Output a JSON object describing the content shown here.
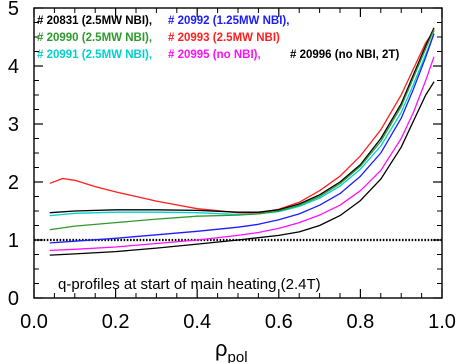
{
  "chart_data": {
    "type": "line",
    "title": "",
    "xlabel": "ρ",
    "xlabel_sub": "pol",
    "ylabel": "",
    "xlim": [
      0.0,
      1.0
    ],
    "ylim": [
      0,
      5
    ],
    "xticks": [
      "0.0",
      "0.2",
      "0.4",
      "0.6",
      "0.8",
      "1.0"
    ],
    "yticks": [
      "0",
      "1",
      "2",
      "3",
      "4",
      "5"
    ],
    "annotation": "q-profiles at start of main heating (2.4T)",
    "reference_line": {
      "y": 1.0,
      "style": "dotted",
      "color": "#000000"
    },
    "legend_rows": [
      [
        {
          "text": "# 20831 (2.5MW NBI),",
          "color": "#000000"
        },
        {
          "text": "# 20992 (1.25MW NBI),",
          "color": "#1c1cff"
        }
      ],
      [
        {
          "text": "# 20990 (2.5MW NBI),",
          "color": "#2e9a2e"
        },
        {
          "text": "# 20993 (2.5MW NBI)",
          "color": "#ff2020"
        }
      ],
      [
        {
          "text": "# 20991 (2.5MW NBI),",
          "color": "#00d0d0"
        },
        {
          "text": "# 20995 (no NBI),",
          "color": "#ff10ff"
        },
        {
          "text": "# 20996 (no NBI, 2T)",
          "color": "#000000"
        }
      ]
    ],
    "series": [
      {
        "color": "#ff2020",
        "x": [
          0.04,
          0.07,
          0.1,
          0.15,
          0.2,
          0.3,
          0.4,
          0.5,
          0.55,
          0.6,
          0.65,
          0.7,
          0.75,
          0.8,
          0.85,
          0.9,
          0.93,
          0.96,
          0.98
        ],
        "y": [
          1.98,
          2.06,
          2.03,
          1.92,
          1.83,
          1.67,
          1.54,
          1.47,
          1.47,
          1.53,
          1.65,
          1.85,
          2.1,
          2.45,
          2.9,
          3.5,
          3.95,
          4.4,
          4.6
        ]
      },
      {
        "color": "#000000",
        "x": [
          0.04,
          0.1,
          0.2,
          0.3,
          0.4,
          0.5,
          0.55,
          0.6,
          0.65,
          0.7,
          0.75,
          0.8,
          0.85,
          0.9,
          0.93,
          0.96,
          0.98
        ],
        "y": [
          1.47,
          1.5,
          1.52,
          1.52,
          1.51,
          1.48,
          1.48,
          1.52,
          1.62,
          1.78,
          2.0,
          2.3,
          2.75,
          3.35,
          3.85,
          4.35,
          4.65
        ]
      },
      {
        "color": "#00d0d0",
        "x": [
          0.04,
          0.1,
          0.2,
          0.3,
          0.4,
          0.5,
          0.55,
          0.6,
          0.65,
          0.7,
          0.75,
          0.8,
          0.85,
          0.9,
          0.93,
          0.96,
          0.98
        ],
        "y": [
          1.42,
          1.46,
          1.48,
          1.48,
          1.47,
          1.44,
          1.45,
          1.49,
          1.58,
          1.72,
          1.93,
          2.22,
          2.62,
          3.2,
          3.68,
          4.2,
          4.55
        ]
      },
      {
        "color": "#2e9a2e",
        "x": [
          0.04,
          0.1,
          0.2,
          0.3,
          0.4,
          0.5,
          0.55,
          0.6,
          0.65,
          0.7,
          0.75,
          0.8,
          0.85,
          0.9,
          0.93,
          0.96,
          0.98
        ],
        "y": [
          1.18,
          1.24,
          1.3,
          1.36,
          1.41,
          1.43,
          1.45,
          1.5,
          1.6,
          1.75,
          1.97,
          2.27,
          2.7,
          3.3,
          3.8,
          4.3,
          4.62
        ]
      },
      {
        "color": "#1c1cff",
        "x": [
          0.04,
          0.1,
          0.2,
          0.3,
          0.4,
          0.5,
          0.55,
          0.6,
          0.65,
          0.7,
          0.75,
          0.8,
          0.85,
          0.9,
          0.93,
          0.96,
          0.98
        ],
        "y": [
          0.95,
          0.98,
          1.03,
          1.09,
          1.15,
          1.22,
          1.27,
          1.35,
          1.45,
          1.6,
          1.8,
          2.1,
          2.5,
          3.1,
          3.6,
          4.15,
          4.55
        ]
      },
      {
        "color": "#ff10ff",
        "x": [
          0.04,
          0.1,
          0.2,
          0.3,
          0.4,
          0.5,
          0.55,
          0.6,
          0.65,
          0.7,
          0.75,
          0.8,
          0.85,
          0.9,
          0.93,
          0.96,
          0.98
        ],
        "y": [
          0.82,
          0.84,
          0.88,
          0.94,
          1.0,
          1.08,
          1.13,
          1.2,
          1.3,
          1.43,
          1.6,
          1.85,
          2.2,
          2.75,
          3.2,
          3.75,
          4.15
        ]
      },
      {
        "color": "#000000",
        "x": [
          0.04,
          0.1,
          0.2,
          0.3,
          0.4,
          0.5,
          0.55,
          0.6,
          0.65,
          0.7,
          0.75,
          0.8,
          0.85,
          0.9,
          0.93,
          0.96,
          0.98
        ],
        "y": [
          0.74,
          0.76,
          0.8,
          0.86,
          0.93,
          1.0,
          1.04,
          1.08,
          1.14,
          1.25,
          1.42,
          1.68,
          2.05,
          2.6,
          3.05,
          3.5,
          3.72
        ]
      }
    ]
  }
}
